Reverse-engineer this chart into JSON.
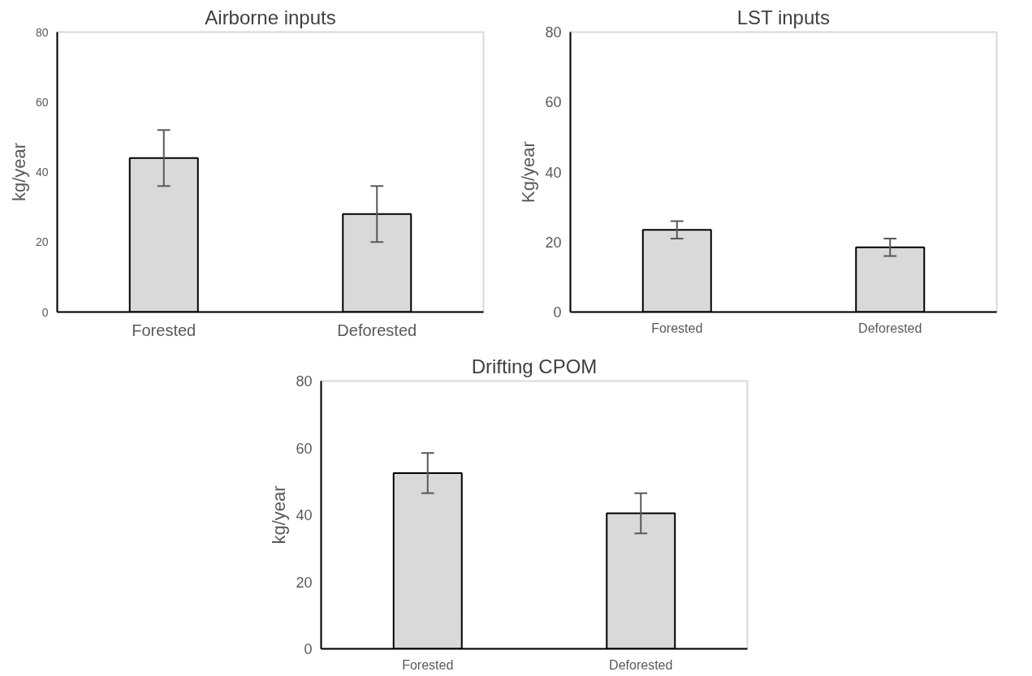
{
  "chart_data": [
    {
      "type": "bar",
      "title": "Airborne inputs",
      "ylabel": "kg/year",
      "categories": [
        "Forested",
        "Deforested"
      ],
      "values": [
        44,
        28
      ],
      "errors": [
        8,
        8
      ],
      "color": "#d9d9d9",
      "ylim": [
        0,
        80
      ],
      "yticks": [
        0,
        20,
        40,
        60,
        80
      ]
    },
    {
      "type": "bar",
      "title": "LST inputs",
      "ylabel": "Kg/year",
      "categories": [
        "Forested",
        "Deforested"
      ],
      "values": [
        23.5,
        18.5
      ],
      "errors": [
        2.5,
        2.5
      ],
      "color": "#d9d9d9",
      "ylim": [
        0,
        80
      ],
      "yticks": [
        0,
        20,
        40,
        60,
        80
      ]
    },
    {
      "type": "bar",
      "title": "Drifting CPOM",
      "ylabel": "kg/year",
      "categories": [
        "Forested",
        "Deforested"
      ],
      "values": [
        52.5,
        40.5
      ],
      "errors": [
        6,
        6
      ],
      "color": "#d9d9d9",
      "ylim": [
        0,
        80
      ],
      "yticks": [
        0,
        20,
        40,
        60,
        80
      ]
    }
  ]
}
